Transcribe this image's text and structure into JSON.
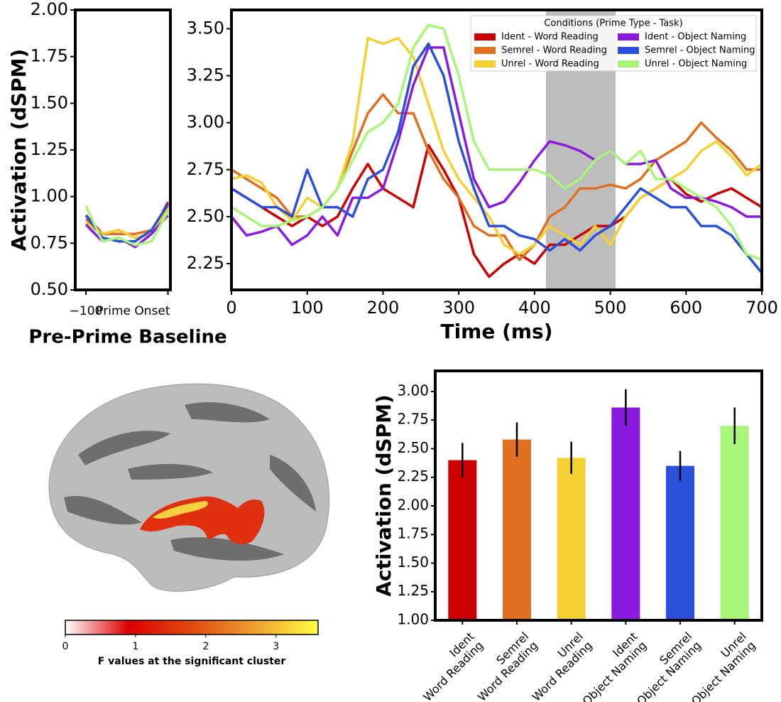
{
  "chart_data": [
    {
      "type": "line",
      "ylabel": "Activation (dSPM)",
      "xlabel": "Pre-Prime Baseline",
      "x": [
        -100,
        -80,
        -60,
        -40,
        -20,
        0
      ],
      "xlim": [
        -113,
        3
      ],
      "xticks": [
        {
          "value": -100,
          "label": "−100"
        },
        {
          "value": 0,
          "label": "Prime Onset"
        }
      ],
      "ylim": [
        0.5,
        2.0
      ],
      "yticks": [
        {
          "value": 0.5,
          "label": "0.50"
        },
        {
          "value": 0.75,
          "label": "0.75"
        },
        {
          "value": 1.0,
          "label": "1.00"
        },
        {
          "value": 1.25,
          "label": "1.25"
        },
        {
          "value": 1.5,
          "label": "1.50"
        },
        {
          "value": 1.75,
          "label": "1.75"
        },
        {
          "value": 2.0,
          "label": "2.00"
        }
      ],
      "series": [
        {
          "color": "#cc0000",
          "values": [
            0.9,
            0.8,
            0.82,
            0.78,
            0.8,
            0.97
          ]
        },
        {
          "color": "#e07020",
          "values": [
            0.88,
            0.8,
            0.8,
            0.8,
            0.82,
            0.95
          ]
        },
        {
          "color": "#f5d033",
          "values": [
            0.86,
            0.8,
            0.82,
            0.78,
            0.8,
            0.93
          ]
        },
        {
          "color": "#8b1ae0",
          "values": [
            0.85,
            0.76,
            0.78,
            0.73,
            0.8,
            0.9
          ]
        },
        {
          "color": "#2a4fd8",
          "values": [
            0.9,
            0.78,
            0.76,
            0.76,
            0.82,
            0.96
          ]
        },
        {
          "color": "#a8f57a",
          "values": [
            0.95,
            0.76,
            0.78,
            0.74,
            0.76,
            0.92
          ]
        }
      ]
    },
    {
      "type": "line",
      "xlabel": "Time (ms)",
      "legend": "upper right",
      "legend_title": "Conditions (Prime Type - Task)",
      "shaded_span": [
        415,
        507
      ],
      "shade_color": "#bdbdbd",
      "x": [
        0,
        20,
        40,
        60,
        80,
        100,
        120,
        140,
        160,
        180,
        200,
        220,
        240,
        260,
        280,
        300,
        320,
        340,
        360,
        380,
        400,
        420,
        440,
        460,
        480,
        500,
        520,
        540,
        560,
        580,
        600,
        620,
        640,
        660,
        680,
        700
      ],
      "xlim": [
        0,
        700
      ],
      "xticks": [
        0,
        100,
        200,
        300,
        400,
        500,
        600,
        700
      ],
      "ylim": [
        2.11,
        3.6
      ],
      "yticks": [
        {
          "value": 2.25,
          "label": "2.25"
        },
        {
          "value": 2.5,
          "label": "2.50"
        },
        {
          "value": 2.75,
          "label": "2.75"
        },
        {
          "value": 3.0,
          "label": "3.00"
        },
        {
          "value": 3.25,
          "label": "3.25"
        },
        {
          "value": 3.5,
          "label": "3.50"
        }
      ],
      "series": [
        {
          "name": "Ident - Word Reading",
          "color": "#cc0000",
          "values": [
            2.65,
            2.6,
            2.55,
            2.5,
            2.45,
            2.5,
            2.45,
            2.5,
            2.65,
            2.78,
            2.65,
            2.6,
            2.55,
            2.88,
            2.75,
            2.6,
            2.3,
            2.18,
            2.25,
            2.3,
            2.25,
            2.35,
            2.35,
            2.4,
            2.45,
            2.45,
            2.5,
            2.6,
            2.65,
            2.7,
            2.62,
            2.58,
            2.62,
            2.65,
            2.6,
            2.55
          ]
        },
        {
          "name": "Semrel - Word Reading",
          "color": "#e07020",
          "values": [
            2.75,
            2.7,
            2.65,
            2.6,
            2.5,
            2.5,
            2.55,
            2.65,
            2.85,
            3.05,
            3.15,
            3.05,
            3.05,
            2.85,
            2.7,
            2.6,
            2.45,
            2.4,
            2.4,
            2.27,
            2.35,
            2.5,
            2.55,
            2.65,
            2.65,
            2.67,
            2.65,
            2.7,
            2.8,
            2.85,
            2.9,
            3.0,
            2.92,
            2.85,
            2.75,
            2.75
          ]
        },
        {
          "name": "Unrel - Word Reading",
          "color": "#f5d033",
          "values": [
            2.7,
            2.72,
            2.68,
            2.55,
            2.48,
            2.6,
            2.55,
            2.65,
            2.9,
            3.45,
            3.42,
            3.45,
            3.35,
            3.1,
            2.85,
            2.7,
            2.6,
            2.5,
            2.35,
            2.3,
            2.35,
            2.45,
            2.4,
            2.35,
            2.45,
            2.35,
            2.5,
            2.6,
            2.65,
            2.7,
            2.75,
            2.85,
            2.9,
            2.82,
            2.72,
            2.78
          ]
        },
        {
          "name": "Ident - Object Naming",
          "color": "#8b1ae0",
          "values": [
            2.5,
            2.4,
            2.42,
            2.45,
            2.35,
            2.4,
            2.5,
            2.4,
            2.6,
            2.6,
            2.65,
            2.9,
            3.2,
            3.4,
            3.4,
            3.05,
            2.7,
            2.55,
            2.58,
            2.68,
            2.8,
            2.9,
            2.88,
            2.85,
            2.8,
            2.85,
            2.78,
            2.78,
            2.8,
            2.65,
            2.6,
            2.6,
            2.58,
            2.55,
            2.5,
            2.5
          ]
        },
        {
          "name": "Semrel - Object Naming",
          "color": "#2a4fd8",
          "values": [
            2.65,
            2.6,
            2.55,
            2.55,
            2.5,
            2.75,
            2.55,
            2.55,
            2.5,
            2.7,
            2.75,
            2.95,
            3.3,
            3.42,
            3.25,
            2.9,
            2.65,
            2.45,
            2.45,
            2.4,
            2.38,
            2.32,
            2.38,
            2.32,
            2.4,
            2.45,
            2.55,
            2.65,
            2.6,
            2.55,
            2.55,
            2.45,
            2.45,
            2.4,
            2.3,
            2.2
          ]
        },
        {
          "name": "Unrel - Object Naming",
          "color": "#a8f57a",
          "values": [
            2.55,
            2.5,
            2.45,
            2.45,
            2.48,
            2.5,
            2.55,
            2.65,
            2.8,
            2.95,
            3.0,
            3.1,
            3.4,
            3.52,
            3.5,
            3.25,
            2.9,
            2.75,
            2.75,
            2.75,
            2.75,
            2.72,
            2.65,
            2.7,
            2.8,
            2.85,
            2.78,
            2.85,
            2.7,
            2.7,
            2.65,
            2.6,
            2.55,
            2.45,
            2.3,
            2.27
          ]
        }
      ]
    },
    {
      "type": "colorbar",
      "xlabel": "F values at the significant cluster",
      "xlim": [
        0,
        3.6
      ],
      "xticks": [
        0,
        1,
        2,
        3
      ],
      "colors": [
        "#ffffff",
        "#dd0000",
        "#e04a10",
        "#f0a030",
        "#ffff40"
      ]
    },
    {
      "type": "bar",
      "ylabel": "Activation (dSPM)",
      "categories": [
        "Ident\nWord Reading",
        "Semrel\nWord Reading",
        "Unrel\nWord Reading",
        "Ident\nObject Naming",
        "Semrel\nObject Naming",
        "Unrel\nObject Naming"
      ],
      "values": [
        2.4,
        2.58,
        2.42,
        2.86,
        2.35,
        2.7
      ],
      "errors": [
        0.15,
        0.15,
        0.14,
        0.16,
        0.13,
        0.16
      ],
      "colors": [
        "#cc0000",
        "#e07020",
        "#f5d033",
        "#8b1ae0",
        "#2a4fd8",
        "#a8f57a"
      ],
      "ylim": [
        1.0,
        3.18
      ],
      "yticks": [
        {
          "value": 1.0,
          "label": "1.00"
        },
        {
          "value": 1.25,
          "label": "1.25"
        },
        {
          "value": 1.5,
          "label": "1.50"
        },
        {
          "value": 1.75,
          "label": "1.75"
        },
        {
          "value": 2.0,
          "label": "2.00"
        },
        {
          "value": 2.25,
          "label": "2.25"
        },
        {
          "value": 2.5,
          "label": "2.50"
        },
        {
          "value": 2.75,
          "label": "2.75"
        },
        {
          "value": 3.0,
          "label": "3.00"
        }
      ]
    }
  ]
}
